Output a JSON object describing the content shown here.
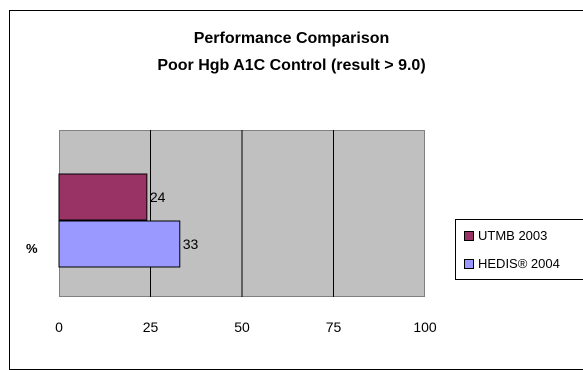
{
  "chart_data": {
    "type": "bar",
    "orientation": "horizontal",
    "title": "Performance Comparison",
    "subtitle": "Poor Hgb A1C Control (result > 9.0)",
    "ylabel": "%",
    "xlim": [
      0,
      100
    ],
    "xticks": [
      0,
      25,
      50,
      75,
      100
    ],
    "grid": true,
    "legend_position": "right",
    "series": [
      {
        "name": "UTMB 2003",
        "value": 24,
        "color": "#993366"
      },
      {
        "name": "HEDIS® 2004",
        "value": 33,
        "color": "#9999ff"
      }
    ]
  }
}
